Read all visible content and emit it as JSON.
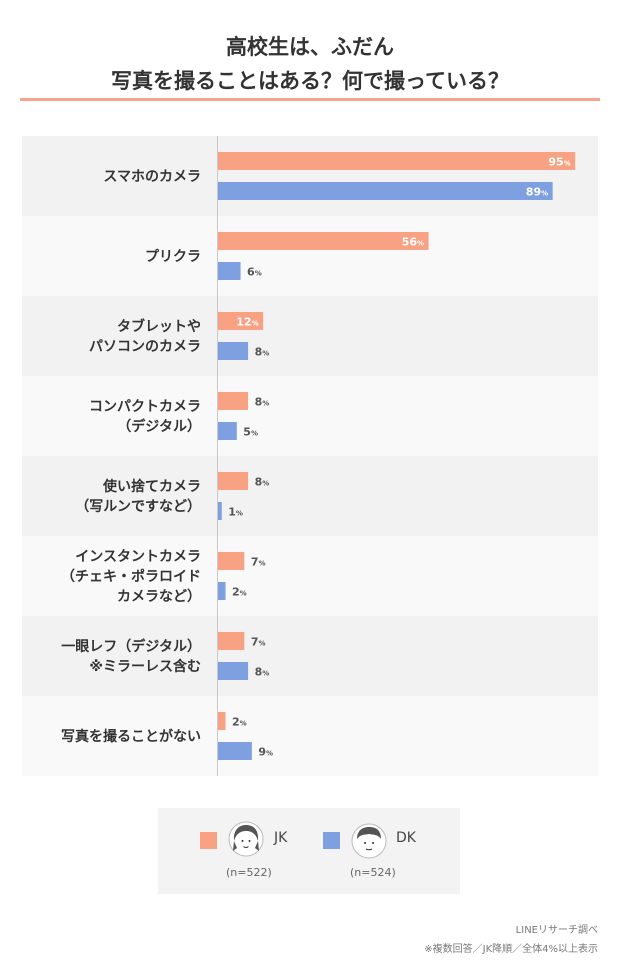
{
  "title": {
    "line1": "高校生は、ふだん",
    "line2": "写真を撮ることはある？何で撮っている？"
  },
  "colors": {
    "jk": "#f9a283",
    "dk": "#7e9fe0",
    "band_dark": "#f2f2f2",
    "band_light": "#f9f9f9",
    "accent_rule": "#f6a48c"
  },
  "chart_data": {
    "type": "bar",
    "orientation": "horizontal",
    "value_unit": "%",
    "categories": [
      [
        "スマホのカメラ"
      ],
      [
        "プリクラ"
      ],
      [
        "タブレットや",
        "パソコンのカメラ"
      ],
      [
        "コンパクトカメラ",
        "（デジタル）"
      ],
      [
        "使い捨てカメラ",
        "（写ルンですなど）"
      ],
      [
        "インスタントカメラ",
        "（チェキ・ポラロイド",
        "カメラなど）"
      ],
      [
        "一眼レフ（デジタル）",
        "※ミラーレス含む"
      ],
      [
        "写真を撮ることがない"
      ]
    ],
    "series": [
      {
        "name": "JK",
        "values": [
          95,
          56,
          12,
          8,
          8,
          7,
          7,
          2
        ]
      },
      {
        "name": "DK",
        "values": [
          89,
          6,
          8,
          5,
          1,
          2,
          8,
          9
        ]
      }
    ],
    "xlim": [
      0,
      100
    ],
    "value_label_suffix": "%"
  },
  "legend": {
    "jk_label": "JK",
    "jk_n": "(n=522)",
    "dk_label": "DK",
    "dk_n": "(n=524)",
    "jk_icon": "girl-face-icon",
    "dk_icon": "boy-face-icon"
  },
  "source": {
    "line1": "LINEリサーチ調べ",
    "line2": "※複数回答／JK降順／全体4%以上表示"
  }
}
